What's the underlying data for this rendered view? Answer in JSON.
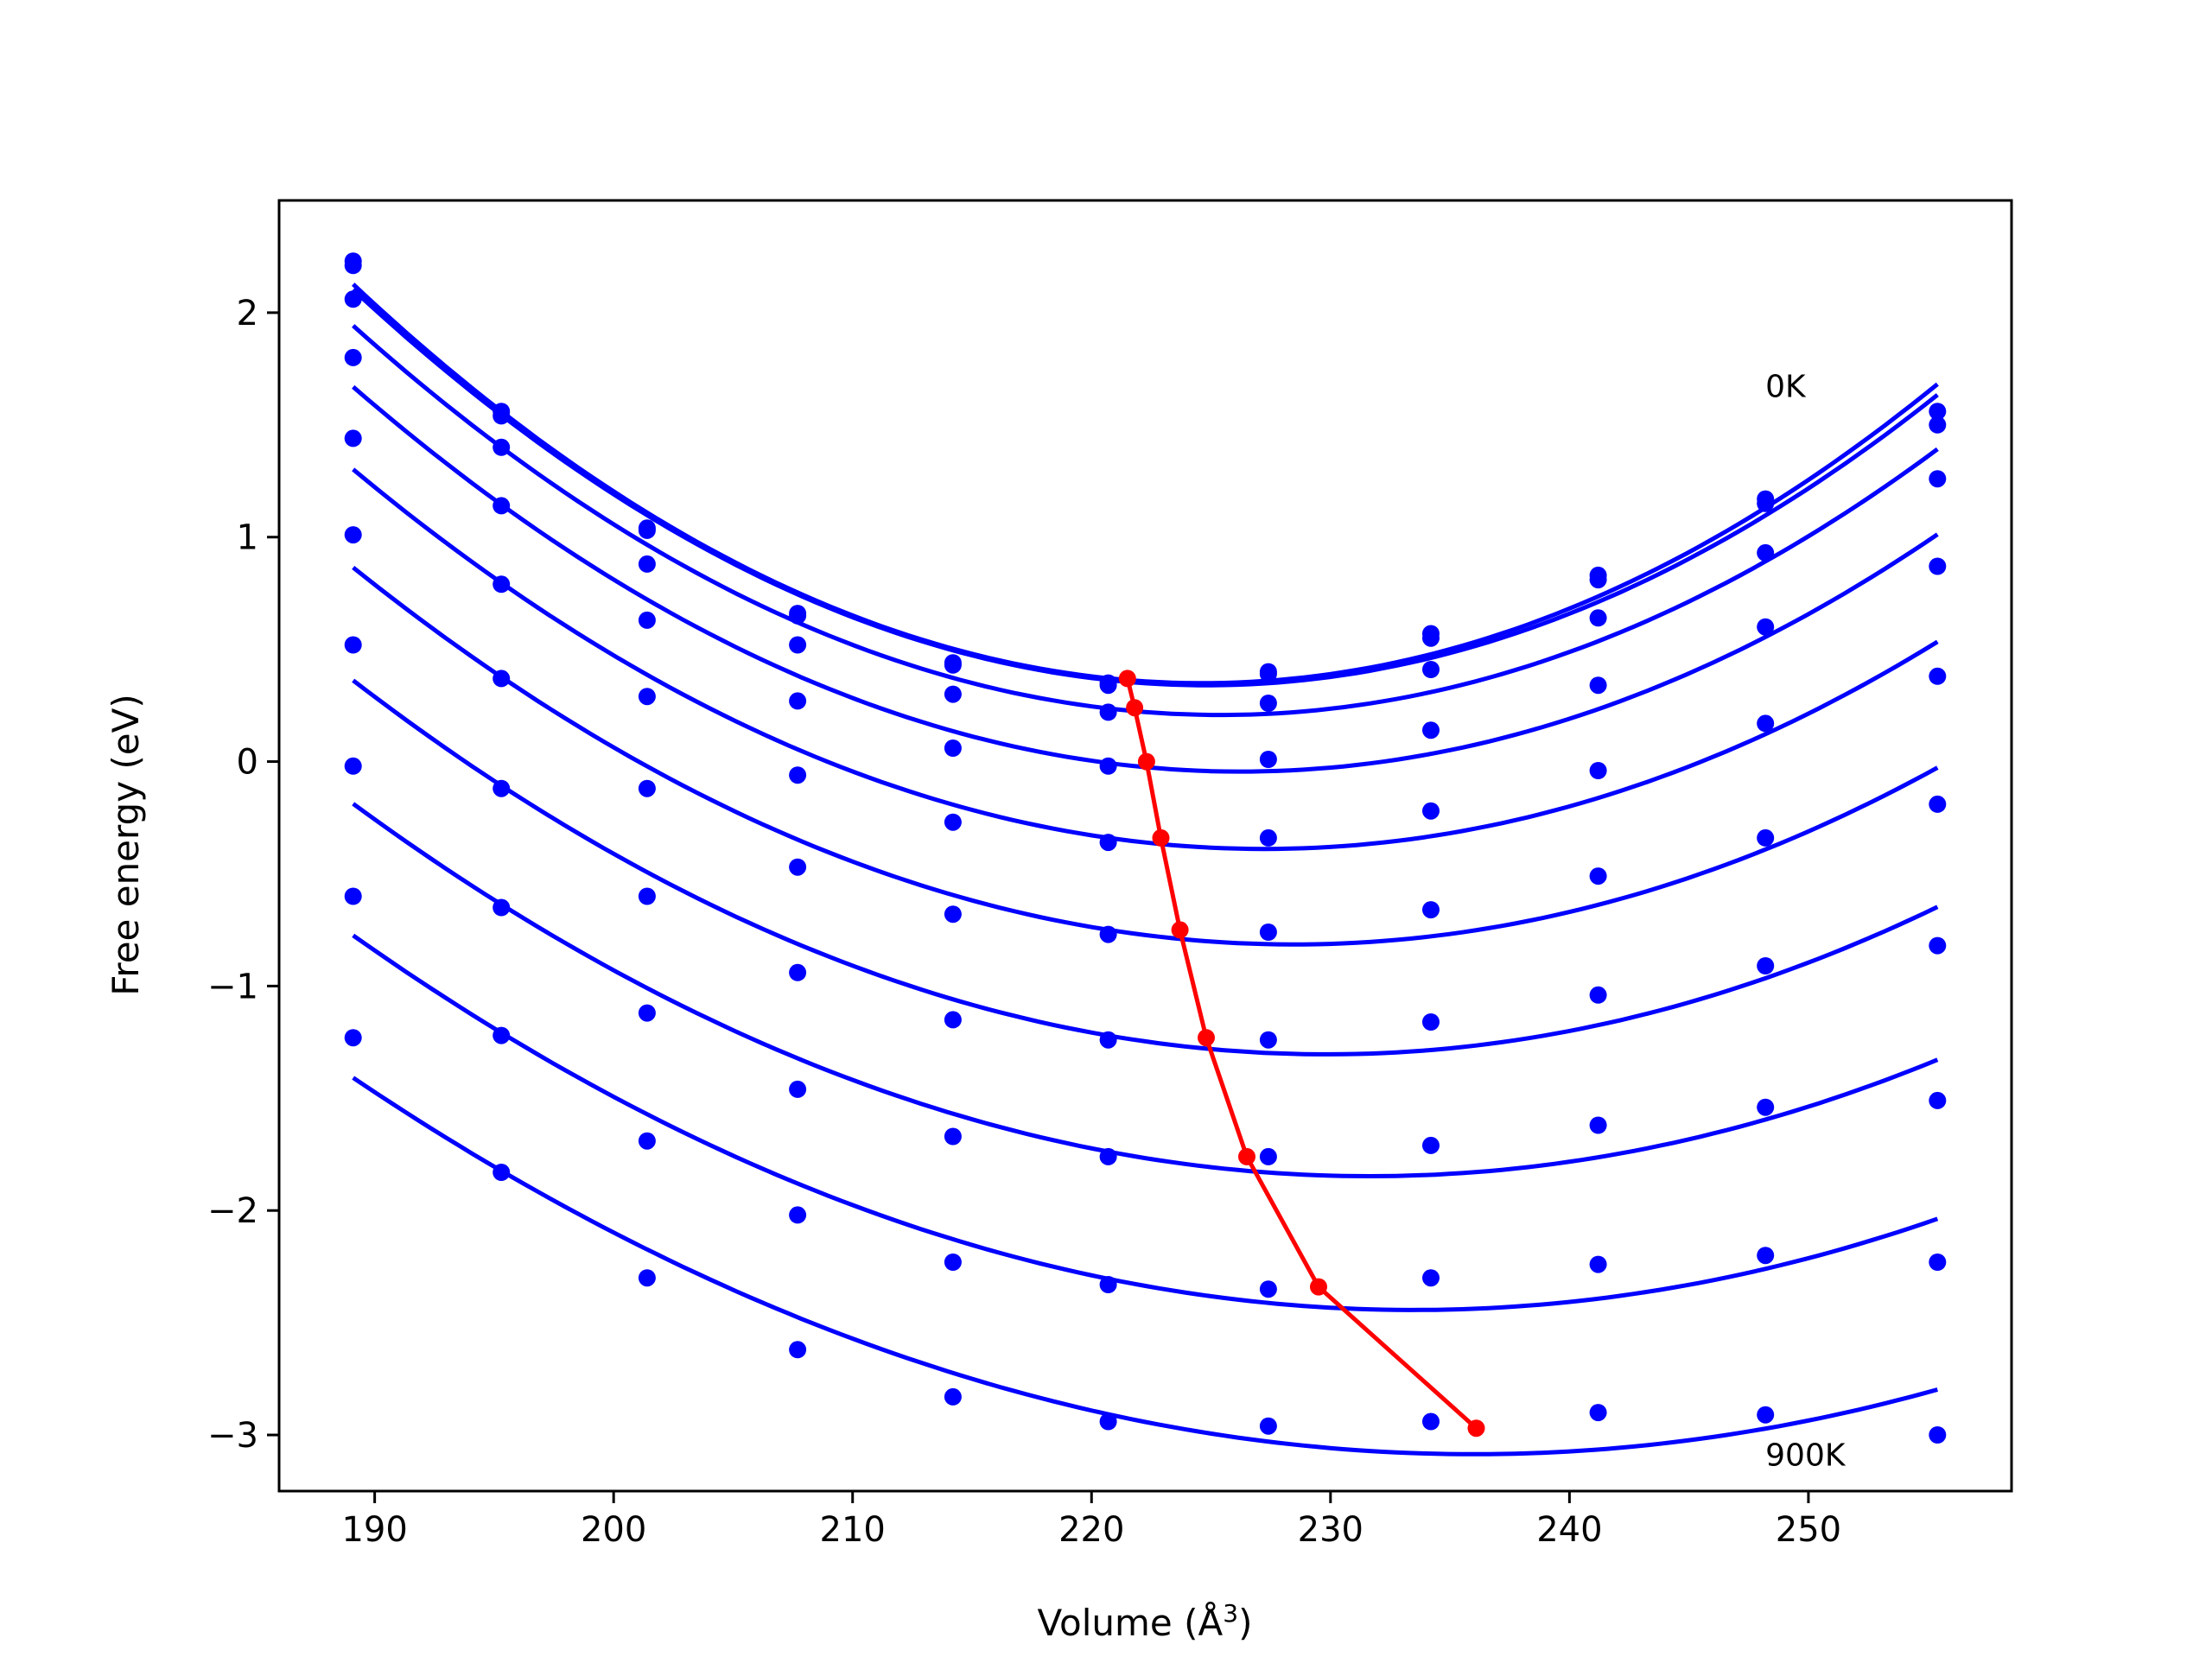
{
  "chart_data": {
    "type": "line",
    "title": "",
    "xlabel": "Volume (Å",
    "xlabel_sup": "3",
    "xlabel_close": ")",
    "ylabel": "Free energy (eV)",
    "xlim": [
      186,
      258.5
    ],
    "ylim": [
      -3.25,
      2.5
    ],
    "xticks": [
      190,
      200,
      210,
      220,
      230,
      240,
      250
    ],
    "yticks": [
      -3,
      -2,
      -1,
      0,
      1,
      2
    ],
    "xtick_labels": [
      "190",
      "200",
      "210",
      "220",
      "230",
      "240",
      "250"
    ],
    "ytick_labels": [
      "−3",
      "−2",
      "−1",
      "0",
      "1",
      "2"
    ],
    "grid": false,
    "annotations": [
      {
        "text": "0K",
        "x": 248.2,
        "y": 1.67
      },
      {
        "text": "900K",
        "x": 248.2,
        "y": -3.09
      }
    ],
    "x": [
      189.1,
      195.3,
      201.4,
      207.7,
      214.2,
      220.7,
      227.4,
      234.2,
      241.2,
      248.2,
      255.4
    ],
    "curve_fit": "quadratic",
    "series": [
      {
        "values": [
          2.23,
          1.56,
          1.04,
          0.66,
          0.44,
          0.35,
          0.4,
          0.57,
          0.83,
          1.17,
          1.56
        ]
      },
      {
        "values": [
          2.21,
          1.54,
          1.03,
          0.65,
          0.43,
          0.34,
          0.39,
          0.55,
          0.81,
          1.15,
          1.5
        ]
      },
      {
        "values": [
          2.06,
          1.4,
          0.88,
          0.52,
          0.3,
          0.22,
          0.26,
          0.41,
          0.64,
          0.93,
          1.26
        ]
      },
      {
        "values": [
          1.8,
          1.14,
          0.63,
          0.27,
          0.06,
          -0.02,
          0.01,
          0.14,
          0.34,
          0.6,
          0.87
        ]
      },
      {
        "values": [
          1.44,
          0.79,
          0.29,
          -0.06,
          -0.27,
          -0.36,
          -0.34,
          -0.22,
          -0.04,
          0.17,
          0.38
        ]
      },
      {
        "values": [
          1.01,
          0.37,
          -0.12,
          -0.47,
          -0.68,
          -0.77,
          -0.76,
          -0.66,
          -0.51,
          -0.34,
          -0.19
        ]
      },
      {
        "values": [
          0.52,
          -0.12,
          -0.6,
          -0.94,
          -1.15,
          -1.24,
          -1.24,
          -1.16,
          -1.04,
          -0.91,
          -0.82
        ]
      },
      {
        "values": [
          -0.02,
          -0.65,
          -1.12,
          -1.46,
          -1.67,
          -1.76,
          -1.76,
          -1.71,
          -1.62,
          -1.54,
          -1.51
        ]
      },
      {
        "values": [
          -0.6,
          -1.22,
          -1.69,
          -2.02,
          -2.23,
          -2.33,
          -2.35,
          -2.3,
          -2.24,
          -2.2,
          -2.23
        ]
      },
      {
        "values": [
          -1.23,
          -1.83,
          -2.3,
          -2.62,
          -2.83,
          -2.94,
          -2.96,
          -2.94,
          -2.9,
          -2.91,
          -3.0
        ]
      }
    ],
    "minimum_path": {
      "x": [
        221.5,
        221.8,
        222.3,
        222.9,
        223.7,
        224.8,
        226.5,
        229.5,
        236.1
      ],
      "y": [
        0.37,
        0.24,
        0.0,
        -0.34,
        -0.75,
        -1.23,
        -1.76,
        -2.34,
        -2.97
      ]
    },
    "colors": {
      "curves": "#0000ff",
      "minimum_path": "#ff0000",
      "axes": "#000000"
    }
  }
}
